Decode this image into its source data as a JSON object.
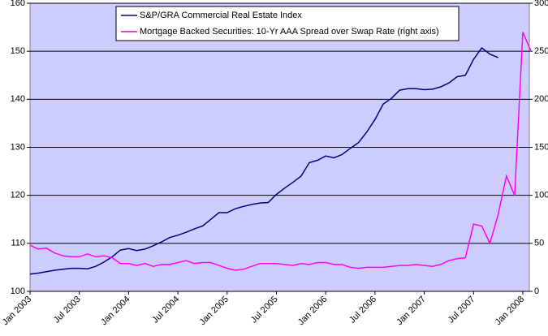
{
  "chart_data": {
    "type": "line",
    "categories": [
      "Jan 2003",
      null,
      null,
      null,
      null,
      null,
      "Jul 2003",
      null,
      null,
      null,
      null,
      null,
      "Jan 2004",
      null,
      null,
      null,
      null,
      null,
      "Jul 2004",
      null,
      null,
      null,
      null,
      null,
      "Jan 2005",
      null,
      null,
      null,
      null,
      null,
      "Jul 2005",
      null,
      null,
      null,
      null,
      null,
      "Jan 2006",
      null,
      null,
      null,
      null,
      null,
      "Jul 2006",
      null,
      null,
      null,
      null,
      null,
      "Jan 2007",
      null,
      null,
      null,
      null,
      null,
      "Jul 2007",
      null,
      null,
      null,
      null,
      null,
      "Jan 2008",
      null
    ],
    "series": [
      {
        "name": "S&P/GRA Commercial Real Estate Index",
        "color": "#000080",
        "axis": "y",
        "values": [
          103.6,
          103.8,
          104.1,
          104.4,
          104.6,
          104.8,
          104.8,
          104.7,
          105.2,
          106.1,
          107.2,
          108.6,
          108.9,
          108.5,
          108.8,
          109.5,
          110.3,
          111.2,
          111.7,
          112.3,
          113.0,
          113.6,
          115.0,
          116.4,
          116.4,
          117.2,
          117.7,
          118.1,
          118.4,
          118.5,
          120.2,
          121.5,
          122.7,
          124.0,
          126.8,
          127.3,
          128.2,
          127.8,
          128.5,
          129.8,
          131.0,
          133.2,
          135.8,
          139.0,
          140.2,
          141.9,
          142.2,
          142.2,
          142.0,
          142.1,
          142.6,
          143.4,
          144.7,
          145.0,
          148.3,
          150.7,
          149.4,
          148.7,
          null,
          null,
          null,
          null
        ]
      },
      {
        "name": "Mortgage Backed Securities: 10-Yr AAA Spread over Swap Rate (right axis)",
        "color": "#ff00ff",
        "axis": "y2",
        "values": [
          48,
          44,
          45,
          40,
          37,
          36,
          36,
          39,
          36,
          37,
          35,
          29,
          29,
          27,
          29,
          26,
          28,
          28,
          30,
          32,
          29,
          30,
          30,
          27,
          24,
          22,
          23,
          26,
          29,
          29,
          29,
          28,
          27,
          29,
          28,
          30,
          30,
          28,
          28,
          25,
          24,
          25,
          25,
          25,
          26,
          27,
          27,
          28,
          27,
          26,
          28,
          32,
          34,
          35,
          70,
          68,
          50,
          80,
          120,
          100,
          270,
          250
        ]
      }
    ],
    "ylim": [
      100,
      160
    ],
    "yticks": [
      100,
      110,
      120,
      130,
      140,
      150,
      160
    ],
    "y2lim": [
      0,
      300
    ],
    "y2ticks": [
      0,
      50,
      100,
      150,
      200,
      250,
      300
    ],
    "grid": true,
    "legend": "top"
  }
}
